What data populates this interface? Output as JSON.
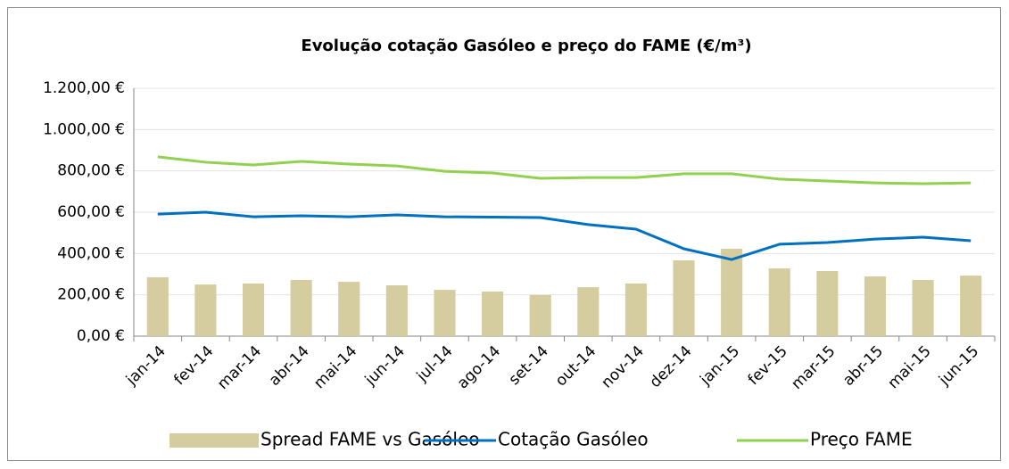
{
  "chart_data": {
    "type": "bar",
    "title": "Evolução cotação Gasóleo e preço do FAME (€/m³)",
    "categories": [
      "jan-14",
      "fev-14",
      "mar-14",
      "abr-14",
      "mai-14",
      "jun-14",
      "jul-14",
      "ago-14",
      "set-14",
      "out-14",
      "nov-14",
      "dez-14",
      "jan-15",
      "fev-15",
      "mar-15",
      "abr-15",
      "mai-15",
      "jun-15"
    ],
    "series": [
      {
        "name": "Spread FAME vs Gasóleo",
        "type": "bar",
        "color": "#d5cd9f",
        "values": [
          285,
          250,
          255,
          272,
          263,
          246,
          224,
          216,
          199,
          237,
          255,
          367,
          423,
          328,
          315,
          289,
          272,
          293
        ]
      },
      {
        "name": "Cotação Gasóleo",
        "type": "line",
        "color": "#0070c0",
        "values": [
          591,
          600,
          578,
          583,
          578,
          587,
          578,
          576,
          574,
          540,
          518,
          423,
          371,
          445,
          453,
          470,
          479,
          462
        ]
      },
      {
        "name": "Preço FAME",
        "type": "line",
        "color": "#92d050",
        "values": [
          868,
          842,
          829,
          846,
          833,
          824,
          798,
          790,
          764,
          768,
          768,
          786,
          786,
          760,
          751,
          742,
          738,
          742
        ]
      }
    ],
    "ylim": [
      0,
      1200
    ],
    "yticks": [
      {
        "value": 0,
        "label": "0,00 €"
      },
      {
        "value": 200,
        "label": "200,00 €"
      },
      {
        "value": 400,
        "label": "400,00 €"
      },
      {
        "value": 600,
        "label": "600,00 €"
      },
      {
        "value": 800,
        "label": "800,00 €"
      },
      {
        "value": 1000,
        "label": "1.000,00 €"
      },
      {
        "value": 1200,
        "label": "1.200,00 €"
      }
    ],
    "grid": true,
    "legend": "bottom"
  }
}
